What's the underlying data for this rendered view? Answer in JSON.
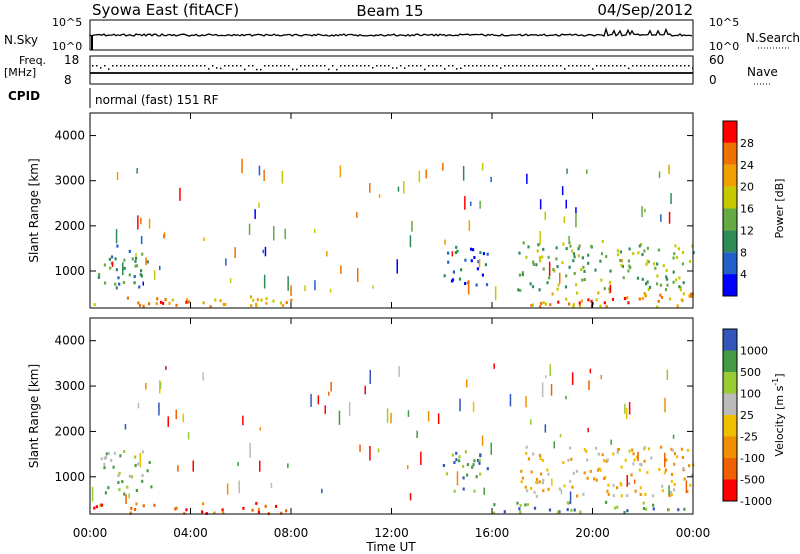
{
  "header": {
    "station": "Syowa East (fitACF)",
    "beam": "Beam 15",
    "date": "04/Sep/2012"
  },
  "top_panels": {
    "nsky_label": "N.Sky",
    "nsky_ticks": [
      "10^5",
      "10^0"
    ],
    "nsearch_label": "N.Search",
    "nsearch_ticks": [
      "10^5",
      "10^0"
    ],
    "freq_label": "Freq.",
    "freq_unit": "[MHz]",
    "freq_ticks": [
      "18",
      "8"
    ],
    "nave_label": "Nave",
    "nave_ticks": [
      "60",
      "0"
    ],
    "cpid_label": "CPID",
    "cpid_value": "normal (fast) 151 RF"
  },
  "colors": {
    "power_scale": [
      "#0000ff",
      "#2060c8",
      "#2e8b57",
      "#66aa44",
      "#c8c800",
      "#f0a000",
      "#f07000",
      "#ff0000"
    ],
    "velocity_scale": [
      "#ff0000",
      "#f06000",
      "#f09000",
      "#f0c000",
      "#bbbbbb",
      "#99cc33",
      "#449944",
      "#3355bb"
    ],
    "ground_scatter": "#bbbbbb"
  },
  "chart_data": [
    {
      "type": "heatmap",
      "name": "power",
      "xlabel": "",
      "ylabel": "Slant Range [km]",
      "xlim": [
        0,
        24
      ],
      "ylim": [
        180,
        4500
      ],
      "yticks": [
        "1000",
        "2000",
        "3000",
        "4000"
      ],
      "xticks": [
        "00:00",
        "04:00",
        "08:00",
        "12:00",
        "16:00",
        "20:00",
        "00:00"
      ],
      "colorbar": {
        "label": "Power [dB]",
        "ticks": [
          "4",
          "8",
          "12",
          "16",
          "20",
          "24",
          "28"
        ]
      },
      "echo_regions": [
        {
          "t0": 0.1,
          "t1": 8.0,
          "r0": 220,
          "r1": 460,
          "level": 5
        },
        {
          "t0": 2.5,
          "t1": 4.0,
          "r0": 220,
          "r1": 430,
          "level": 7
        },
        {
          "t0": 0.3,
          "t1": 2.4,
          "r0": 650,
          "r1": 1600,
          "level": 2
        },
        {
          "t0": 14.0,
          "t1": 15.8,
          "r0": 700,
          "r1": 1600,
          "level": 1
        },
        {
          "t0": 17.5,
          "t1": 24.0,
          "r0": 230,
          "r1": 600,
          "level": 5
        },
        {
          "t0": 18.5,
          "t1": 21.5,
          "r0": 230,
          "r1": 430,
          "level": 7
        },
        {
          "t0": 17.0,
          "t1": 24.0,
          "r0": 600,
          "r1": 1700,
          "level": 3
        }
      ]
    },
    {
      "type": "heatmap",
      "name": "velocity",
      "xlabel": "Time UT",
      "ylabel": "Slant Range [km]",
      "xlim": [
        0,
        24
      ],
      "ylim": [
        180,
        4500
      ],
      "yticks": [
        "1000",
        "2000",
        "3000",
        "4000"
      ],
      "xticks": [
        "00:00",
        "04:00",
        "08:00",
        "12:00",
        "16:00",
        "20:00",
        "00:00"
      ],
      "colorbar": {
        "label": "Velocity [m s",
        "label_superscript": "-1",
        "label_end": "]",
        "ticks": [
          "1000",
          "500",
          "100",
          "25",
          "-25",
          "-100",
          "-500",
          "-1000"
        ]
      },
      "echo_regions": [
        {
          "t0": 0.1,
          "t1": 8.0,
          "r0": 220,
          "r1": 460,
          "level": 1
        },
        {
          "t0": 0.3,
          "t1": 2.4,
          "r0": 650,
          "r1": 1600,
          "level": 5
        },
        {
          "t0": 14.0,
          "t1": 15.8,
          "r0": 700,
          "r1": 1600,
          "level": 6
        },
        {
          "t0": 16.0,
          "t1": 24.0,
          "r0": 230,
          "r1": 480,
          "level": 6
        },
        {
          "t0": 17.0,
          "t1": 24.0,
          "r0": 600,
          "r1": 1700,
          "level": 3
        }
      ]
    }
  ]
}
